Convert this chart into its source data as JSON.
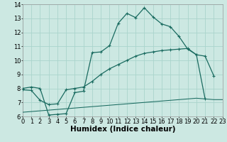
{
  "xlabel": "Humidex (Indice chaleur)",
  "bg_color": "#cce8e2",
  "grid_color": "#aad4cc",
  "line_color": "#1a6b60",
  "xlim": [
    0,
    23
  ],
  "ylim": [
    6,
    14
  ],
  "xticks": [
    0,
    1,
    2,
    3,
    4,
    5,
    6,
    7,
    8,
    9,
    10,
    11,
    12,
    13,
    14,
    15,
    16,
    17,
    18,
    19,
    20,
    21,
    22,
    23
  ],
  "yticks": [
    6,
    7,
    8,
    9,
    10,
    11,
    12,
    13,
    14
  ],
  "line1_x": [
    0,
    1,
    2,
    3,
    4,
    5,
    6,
    7,
    8,
    9,
    10,
    11,
    12,
    13,
    14,
    15,
    16,
    17,
    18,
    19,
    20,
    21,
    22
  ],
  "line1_y": [
    8.0,
    8.1,
    8.0,
    6.1,
    6.15,
    6.2,
    7.7,
    7.8,
    10.55,
    10.6,
    11.05,
    12.65,
    13.35,
    13.05,
    13.75,
    13.1,
    12.6,
    12.4,
    11.7,
    10.8,
    10.4,
    10.3,
    8.9
  ],
  "line2_x": [
    0,
    1,
    2,
    3,
    4,
    5,
    6,
    7,
    8,
    9,
    10,
    11,
    12,
    13,
    14,
    15,
    16,
    17,
    18,
    19,
    20,
    21
  ],
  "line2_y": [
    7.9,
    7.85,
    7.15,
    6.85,
    6.9,
    7.9,
    8.0,
    8.1,
    8.5,
    9.0,
    9.4,
    9.7,
    10.0,
    10.3,
    10.5,
    10.6,
    10.7,
    10.75,
    10.8,
    10.85,
    10.4,
    7.25
  ],
  "line3_x": [
    0,
    1,
    2,
    3,
    4,
    5,
    6,
    7,
    8,
    9,
    10,
    11,
    12,
    13,
    14,
    15,
    16,
    17,
    18,
    19,
    20,
    21,
    22,
    23
  ],
  "line3_y": [
    6.3,
    6.35,
    6.4,
    6.45,
    6.5,
    6.55,
    6.6,
    6.65,
    6.7,
    6.75,
    6.8,
    6.85,
    6.9,
    6.95,
    7.0,
    7.05,
    7.1,
    7.15,
    7.2,
    7.25,
    7.3,
    7.25,
    7.2,
    7.2
  ],
  "xlabel_fontsize": 7.5,
  "tick_fontsize": 6
}
